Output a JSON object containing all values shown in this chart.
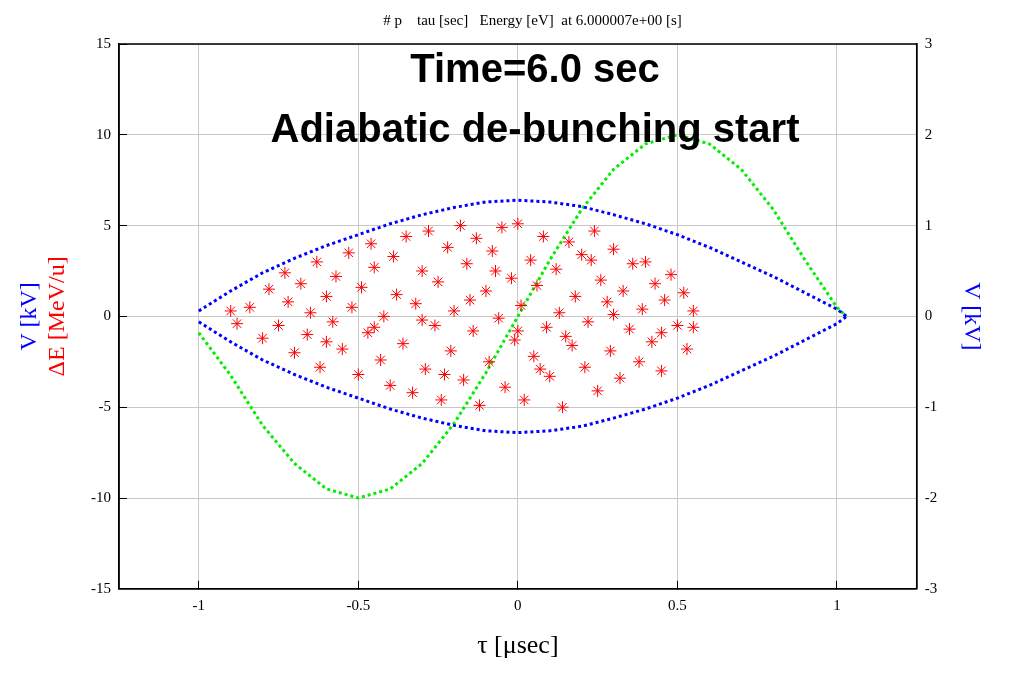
{
  "chart_data": {
    "type": "scatter",
    "title": "# p    tau [sec]   Energy [eV]  at 6.000007e+00 [s]",
    "xlabel": "τ [μsec]",
    "ylabel": "ΔE [MeV/u]",
    "y2label": "V [kV]",
    "annotations": [
      "Time=6.0 sec",
      "Adiabatic de-bunching start"
    ],
    "xlim": [
      -1.25,
      1.25
    ],
    "xticks": [
      -1,
      -0.5,
      0,
      0.5,
      1
    ],
    "ylim": [
      -15,
      15
    ],
    "yticks": [
      -15,
      -10,
      -5,
      0,
      5,
      10,
      15
    ],
    "y2lim": [
      -3,
      3
    ],
    "y2ticks": [
      -3,
      -2,
      -1,
      0,
      1,
      2,
      3
    ],
    "grid": true,
    "legend": false,
    "series": [
      {
        "type": "scatter",
        "color": "#ff0000",
        "marker": "cross",
        "x": [
          -0.9,
          -0.88,
          -0.84,
          -0.8,
          -0.78,
          -0.75,
          -0.73,
          -0.72,
          -0.7,
          -0.68,
          -0.66,
          -0.65,
          -0.63,
          -0.62,
          -0.6,
          -0.58,
          -0.57,
          -0.55,
          -0.53,
          -0.52,
          -0.5,
          -0.49,
          -0.47,
          -0.46,
          -0.45,
          -0.43,
          -0.42,
          -0.4,
          -0.39,
          -0.38,
          -0.36,
          -0.35,
          -0.33,
          -0.32,
          -0.3,
          -0.29,
          -0.28,
          -0.26,
          -0.25,
          -0.24,
          -0.22,
          -0.21,
          -0.2,
          -0.18,
          -0.17,
          -0.16,
          -0.14,
          -0.13,
          -0.12,
          -0.1,
          -0.09,
          -0.08,
          -0.06,
          -0.05,
          -0.04,
          -0.02,
          -0.01,
          0.0,
          0.01,
          0.02,
          0.04,
          0.05,
          0.06,
          0.08,
          0.09,
          0.1,
          0.12,
          0.13,
          0.14,
          0.16,
          0.17,
          0.18,
          0.2,
          0.21,
          0.22,
          0.24,
          0.25,
          0.26,
          0.28,
          0.29,
          0.3,
          0.32,
          0.33,
          0.35,
          0.36,
          0.38,
          0.39,
          0.4,
          0.42,
          0.43,
          0.45,
          0.46,
          0.48,
          0.5,
          0.52,
          0.53,
          0.55,
          0.55,
          -0.15,
          -0.3,
          0.15,
          0.0,
          -0.45,
          0.3,
          -0.6,
          0.45,
          -0.07,
          0.07,
          -0.23,
          0.23
        ],
        "values": [
          0.3,
          -0.4,
          0.5,
          -1.2,
          1.5,
          -0.5,
          2.4,
          0.8,
          -2.0,
          1.8,
          -1.0,
          0.2,
          3.0,
          -2.8,
          1.1,
          -0.3,
          2.2,
          -1.8,
          3.5,
          0.5,
          -3.2,
          1.6,
          -0.9,
          4.0,
          2.7,
          -2.4,
          0.0,
          -3.8,
          3.3,
          1.2,
          -1.5,
          4.4,
          -4.2,
          0.7,
          2.5,
          -2.9,
          4.7,
          -0.5,
          1.9,
          -4.6,
          3.8,
          -1.9,
          0.3,
          5.0,
          -3.5,
          2.9,
          -0.8,
          4.3,
          -4.9,
          1.4,
          -2.5,
          3.6,
          -0.1,
          4.9,
          -3.9,
          2.1,
          -1.3,
          5.1,
          0.6,
          -4.6,
          3.1,
          -2.2,
          1.7,
          4.4,
          -0.6,
          -3.3,
          2.6,
          0.2,
          -5.0,
          4.1,
          -1.6,
          1.1,
          3.4,
          -2.8,
          -0.3,
          4.7,
          -4.1,
          2.0,
          0.8,
          -1.9,
          3.7,
          -3.4,
          1.4,
          -0.7,
          2.9,
          -2.5,
          0.4,
          3.0,
          -1.4,
          1.8,
          -3.0,
          0.9,
          2.3,
          -0.5,
          1.3,
          -1.8,
          0.3,
          -0.6,
          0.9,
          -0.2,
          -1.1,
          -0.8,
          -0.6,
          0.1,
          -1.4,
          -0.9,
          2.5,
          -2.9,
          -3.2,
          3.1
        ]
      },
      {
        "type": "line",
        "color": "#0000ff",
        "line_style": "dotted",
        "x": [
          -1,
          -0.9,
          -0.8,
          -0.7,
          -0.6,
          -0.5,
          -0.4,
          -0.3,
          -0.2,
          -0.1,
          0,
          0.1,
          0.2,
          0.3,
          0.4,
          0.5,
          0.6,
          0.7,
          0.8,
          0.9,
          1.0,
          1.03
        ],
        "values": [
          0.3,
          1.4,
          2.4,
          3.2,
          3.9,
          4.5,
          5.1,
          5.6,
          6.0,
          6.3,
          6.4,
          6.3,
          6.05,
          5.6,
          5.1,
          4.5,
          3.8,
          3.0,
          2.2,
          1.3,
          0.4,
          0
        ]
      },
      {
        "type": "line",
        "color": "#0000ff",
        "line_style": "dotted",
        "x": [
          -1,
          -0.9,
          -0.8,
          -0.7,
          -0.6,
          -0.5,
          -0.4,
          -0.3,
          -0.2,
          -0.1,
          0,
          0.1,
          0.2,
          0.3,
          0.4,
          0.5,
          0.6,
          0.7,
          0.8,
          0.9,
          1.0,
          1.03
        ],
        "values": [
          -0.3,
          -1.4,
          -2.4,
          -3.2,
          -3.9,
          -4.5,
          -5.1,
          -5.6,
          -6.0,
          -6.3,
          -6.4,
          -6.3,
          -6.05,
          -5.6,
          -5.1,
          -4.5,
          -3.8,
          -3.0,
          -2.2,
          -1.3,
          -0.4,
          0
        ]
      },
      {
        "type": "line",
        "color": "#00ee00",
        "line_style": "dotted",
        "axis": "y2",
        "x": [
          -1,
          -0.9,
          -0.8,
          -0.7,
          -0.6,
          -0.5,
          -0.4,
          -0.3,
          -0.2,
          -0.1,
          0,
          0.1,
          0.2,
          0.3,
          0.4,
          0.5,
          0.6,
          0.7,
          0.8,
          0.9,
          1.0,
          1.03
        ],
        "values": [
          -0.18,
          -0.65,
          -1.2,
          -1.62,
          -1.9,
          -2.0,
          -1.9,
          -1.62,
          -1.18,
          -0.62,
          0.0,
          0.62,
          1.18,
          1.62,
          1.9,
          2.0,
          1.9,
          1.62,
          1.18,
          0.62,
          0.1,
          0
        ]
      }
    ]
  }
}
